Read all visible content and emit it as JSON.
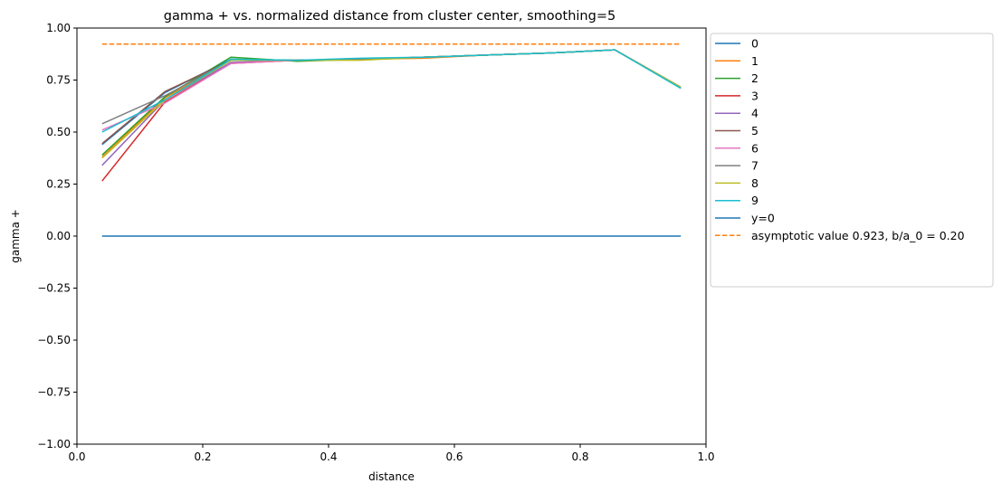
{
  "chart_data": {
    "type": "line",
    "title": "gamma + vs. normalized distance from cluster center, smoothing=5",
    "xlabel": "distance",
    "ylabel": "gamma +",
    "xlim": [
      0.0,
      1.0
    ],
    "ylim": [
      -1.0,
      1.0
    ],
    "xticks": [
      0.0,
      0.2,
      0.4,
      0.6,
      0.8,
      1.0
    ],
    "xtick_labels": [
      "0.0",
      "0.2",
      "0.4",
      "0.6",
      "0.8",
      "1.0"
    ],
    "yticks": [
      1.0,
      0.75,
      0.5,
      0.25,
      0.0,
      -0.25,
      -0.5,
      -0.75,
      -1.0
    ],
    "ytick_labels": [
      "1.00",
      "0.75",
      "0.50",
      "0.25",
      "0.00",
      "−0.25",
      "−0.50",
      "−0.75",
      "−1.00"
    ],
    "grid": false,
    "legend_position": "outside-right-top",
    "x": [
      0.04,
      0.14,
      0.245,
      0.35,
      0.45,
      0.55,
      0.65,
      0.75,
      0.855,
      0.96
    ],
    "series": [
      {
        "name": "0",
        "color": "#1f77b4",
        "style": "solid",
        "values": [
          0.44,
          0.69,
          0.85,
          0.845,
          0.85,
          0.86,
          0.87,
          0.88,
          0.895,
          0.715
        ]
      },
      {
        "name": "1",
        "color": "#ff7f0e",
        "style": "solid",
        "values": [
          0.38,
          0.665,
          0.845,
          0.845,
          0.85,
          0.855,
          0.87,
          0.88,
          0.895,
          0.715
        ]
      },
      {
        "name": "2",
        "color": "#2ca02c",
        "style": "solid",
        "values": [
          0.39,
          0.67,
          0.86,
          0.84,
          0.85,
          0.86,
          0.87,
          0.88,
          0.895,
          0.715
        ]
      },
      {
        "name": "3",
        "color": "#d62728",
        "style": "solid",
        "values": [
          0.265,
          0.645,
          0.83,
          0.845,
          0.85,
          0.86,
          0.87,
          0.88,
          0.895,
          0.715
        ]
      },
      {
        "name": "4",
        "color": "#9467bd",
        "style": "solid",
        "values": [
          0.34,
          0.655,
          0.835,
          0.845,
          0.85,
          0.86,
          0.87,
          0.88,
          0.895,
          0.715
        ]
      },
      {
        "name": "5",
        "color": "#8c564b",
        "style": "solid",
        "values": [
          0.445,
          0.695,
          0.845,
          0.845,
          0.85,
          0.86,
          0.87,
          0.88,
          0.895,
          0.715
        ]
      },
      {
        "name": "6",
        "color": "#e377c2",
        "style": "solid",
        "values": [
          0.51,
          0.64,
          0.83,
          0.845,
          0.85,
          0.86,
          0.87,
          0.88,
          0.895,
          0.715
        ]
      },
      {
        "name": "7",
        "color": "#7f7f7f",
        "style": "solid",
        "values": [
          0.54,
          0.675,
          0.845,
          0.845,
          0.85,
          0.86,
          0.87,
          0.88,
          0.895,
          0.715
        ]
      },
      {
        "name": "8",
        "color": "#bcbd22",
        "style": "solid",
        "values": [
          0.375,
          0.655,
          0.845,
          0.845,
          0.845,
          0.86,
          0.87,
          0.88,
          0.895,
          0.715
        ]
      },
      {
        "name": "9",
        "color": "#17becf",
        "style": "solid",
        "values": [
          0.5,
          0.655,
          0.85,
          0.845,
          0.855,
          0.86,
          0.87,
          0.88,
          0.895,
          0.71
        ]
      }
    ],
    "reference_lines": [
      {
        "name": "y=0",
        "color": "#1f77b4",
        "style": "solid",
        "x": [
          0.04,
          0.96
        ],
        "values": [
          0.0,
          0.0
        ]
      },
      {
        "name": "asymptotic value 0.923, b/a_0 = 0.20",
        "color": "#ff7f0e",
        "style": "dashed",
        "x": [
          0.04,
          0.96
        ],
        "values": [
          0.923,
          0.923
        ]
      }
    ]
  }
}
